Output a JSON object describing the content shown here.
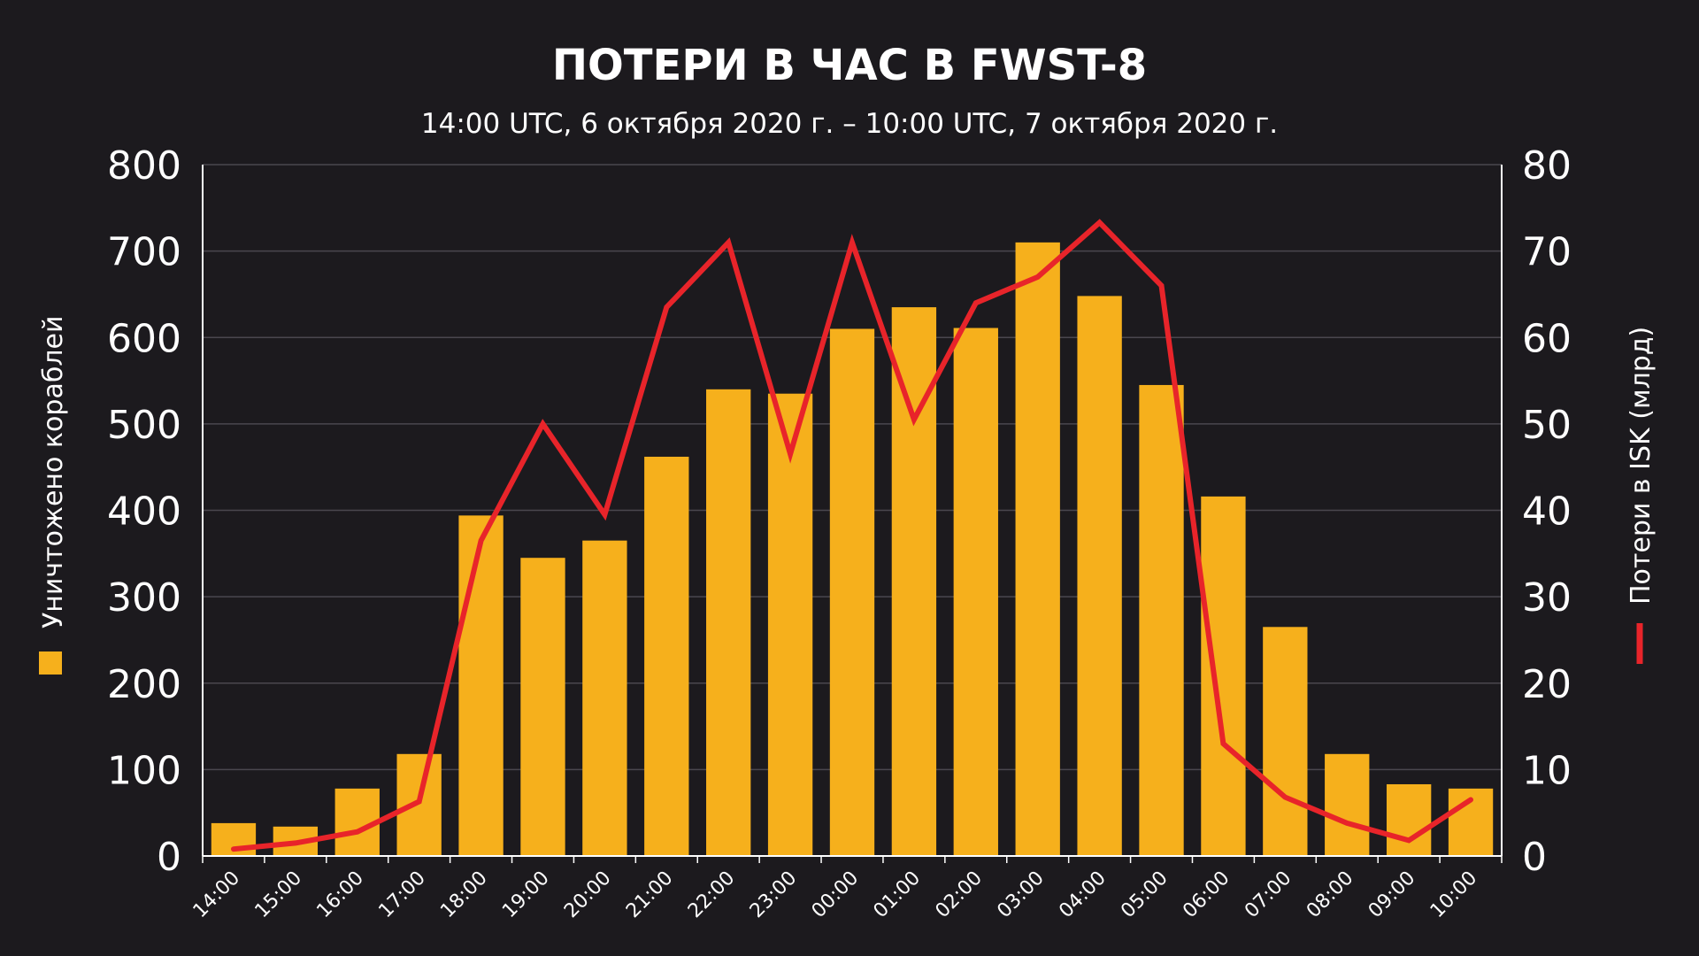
{
  "chart_data": {
    "type": "bar",
    "title": "ПОТЕРИ В ЧАС В FWST-8",
    "subtitle": "14:00 UTC, 6 октября 2020 г. – 10:00 UTC, 7 октября 2020 г.",
    "categories": [
      "14:00",
      "15:00",
      "16:00",
      "17:00",
      "18:00",
      "19:00",
      "20:00",
      "21:00",
      "22:00",
      "23:00",
      "00:00",
      "01:00",
      "02:00",
      "03:00",
      "04:00",
      "05:00",
      "06:00",
      "07:00",
      "08:00",
      "09:00",
      "10:00"
    ],
    "series": [
      {
        "name": "Уничтожено кораблей",
        "type": "bar",
        "axis": "left",
        "color": "#f6b01c",
        "values": [
          38,
          34,
          78,
          118,
          394,
          345,
          365,
          462,
          540,
          535,
          610,
          635,
          611,
          710,
          648,
          545,
          416,
          265,
          118,
          83,
          78
        ]
      },
      {
        "name": "Потери в ISK (млрд)",
        "type": "line",
        "axis": "right",
        "color": "#e8242a",
        "values": [
          0.8,
          1.5,
          2.8,
          6.3,
          36.5,
          50,
          39.5,
          63.5,
          71,
          46.5,
          71,
          50.5,
          64,
          67,
          73.3,
          66,
          13,
          6.8,
          3.8,
          1.8,
          6.5
        ]
      }
    ],
    "ylabel": "Уничтожено кораблей",
    "y2label": "Потери в ISK (млрд)",
    "ylim": [
      0,
      800
    ],
    "y2lim": [
      0,
      80
    ],
    "yticks": [
      0,
      100,
      200,
      300,
      400,
      500,
      600,
      700,
      800
    ],
    "y2ticks": [
      0,
      10,
      20,
      30,
      40,
      50,
      60,
      70,
      80
    ],
    "grid": true,
    "legend": "axis-titles"
  }
}
